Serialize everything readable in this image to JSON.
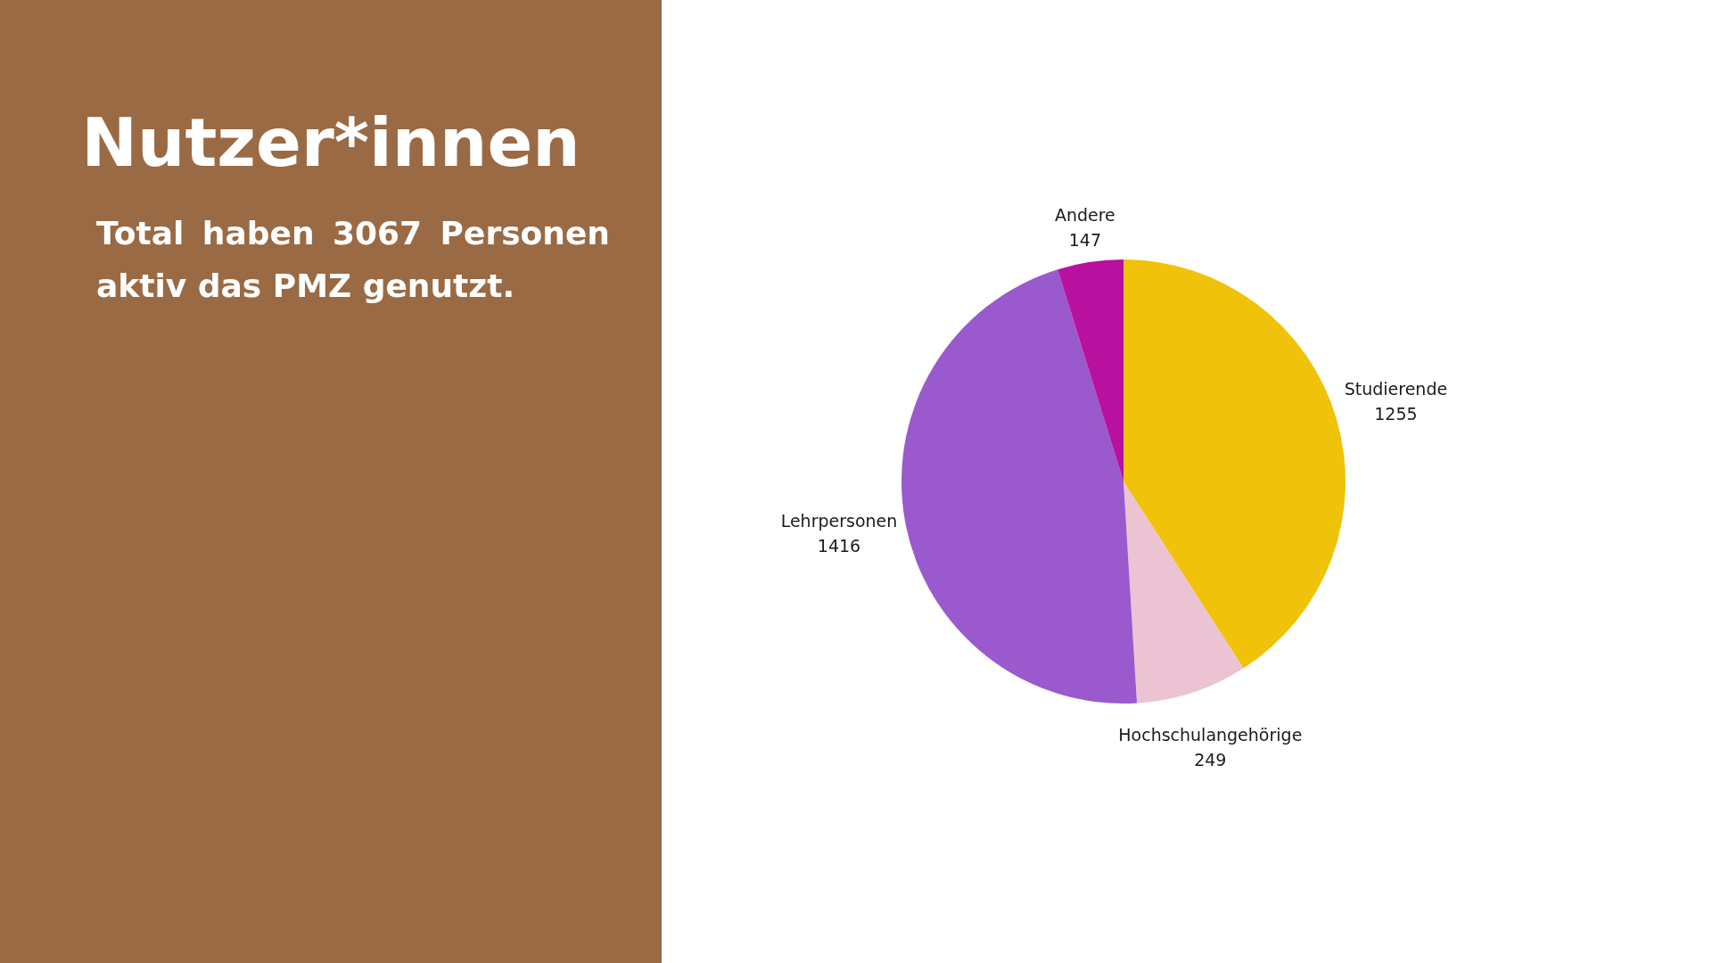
{
  "chart_data": {
    "type": "pie",
    "title": "Nutzer*innen",
    "subtitle": "Total haben 3067 Personen aktiv das PMZ genutzt.",
    "categories": [
      "Studierende",
      "Hochschulangehörige",
      "Lehrpersonen",
      "Andere"
    ],
    "values": [
      1255,
      249,
      1416,
      147
    ],
    "colors": [
      "#f0c20a",
      "#ebc3d2",
      "#9a59cc",
      "#b8109f"
    ],
    "data_labels": true
  }
}
